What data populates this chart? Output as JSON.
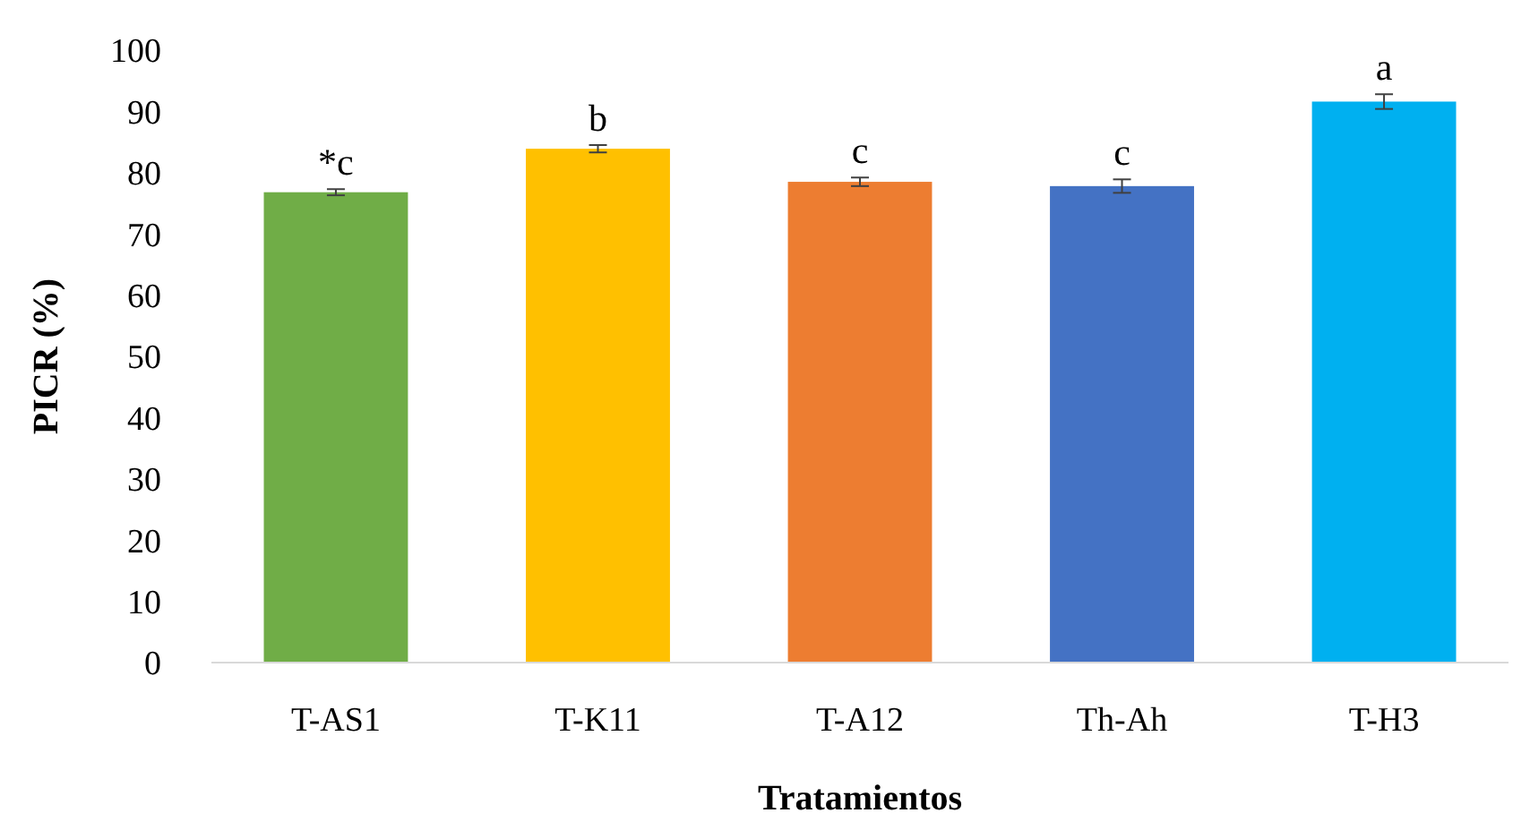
{
  "chart_data": {
    "type": "bar",
    "ylabel": "PICR (%)",
    "xlabel": "Tratamientos",
    "categories": [
      "T-AS1",
      "T-K11",
      "T-A12",
      "Th-Ah",
      "T-H3"
    ],
    "values": [
      76.8,
      83.9,
      78.5,
      77.8,
      91.6
    ],
    "colors": [
      "#70ad47",
      "#ffc000",
      "#ed7d31",
      "#4472c4",
      "#00b0f0"
    ],
    "errors": [
      0.5,
      0.6,
      0.7,
      1.1,
      1.2
    ],
    "ylim": [
      0,
      100
    ],
    "yticks": [
      0,
      10,
      20,
      30,
      40,
      50,
      60,
      70,
      80,
      90,
      100
    ],
    "grid": false,
    "annotations": [
      {
        "text": "*c",
        "x": "T-AS1",
        "y": 77.3
      },
      {
        "text": "b",
        "x": "T-K11",
        "y": 84.5
      },
      {
        "text": "c",
        "x": "T-A12",
        "y": 79.2
      },
      {
        "text": "c",
        "x": "Th-Ah",
        "y": 78.9
      },
      {
        "text": "a",
        "x": "T-H3",
        "y": 92.8
      }
    ]
  }
}
